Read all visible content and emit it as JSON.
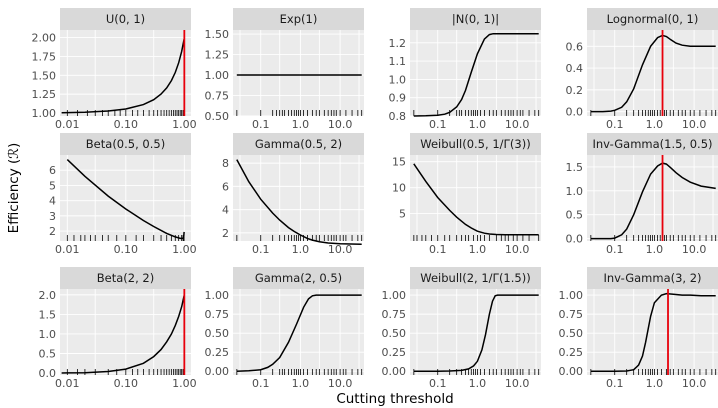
{
  "figure": {
    "xlabel": "Cutting threshold",
    "ylabel": "Efficiency (ℛ)"
  },
  "chart_data": [
    {
      "type": "line",
      "title": "U(0, 1)",
      "x_scale": "log",
      "xlim": [
        0.0075,
        1.3
      ],
      "ylim": [
        0.96,
        2.1
      ],
      "x_ticks": [
        {
          "v": 0.01,
          "label": "0.01"
        },
        {
          "v": 0.1,
          "label": "0.10"
        },
        {
          "v": 1,
          "label": "1.00"
        }
      ],
      "y_ticks": [
        {
          "v": 1.0,
          "label": "1.00"
        },
        {
          "v": 1.25,
          "label": "1.25"
        },
        {
          "v": 1.5,
          "label": "1.50"
        },
        {
          "v": 1.75,
          "label": "1.75"
        },
        {
          "v": 2.0,
          "label": "2.00"
        }
      ],
      "curve": {
        "x": [
          0.008,
          0.01,
          0.02,
          0.05,
          0.1,
          0.2,
          0.3,
          0.4,
          0.5,
          0.6,
          0.7,
          0.8,
          0.9,
          0.95,
          0.99
        ],
        "y": [
          1.004,
          1.005,
          1.01,
          1.026,
          1.053,
          1.111,
          1.176,
          1.25,
          1.333,
          1.429,
          1.538,
          1.667,
          1.818,
          1.905,
          1.98
        ]
      },
      "vline": 1.0,
      "rug": [
        0.01,
        0.015,
        0.022,
        0.03,
        0.04,
        0.05,
        0.065,
        0.08,
        0.1,
        0.13,
        0.16,
        0.2,
        0.25,
        0.3,
        0.35,
        0.4,
        0.45,
        0.5,
        0.55,
        0.6,
        0.65,
        0.7,
        0.75,
        0.8,
        0.85,
        0.9,
        0.95,
        0.99
      ]
    },
    {
      "type": "line",
      "title": "Exp(1)",
      "x_scale": "log",
      "xlim": [
        0.02,
        40
      ],
      "ylim": [
        0.5,
        1.55
      ],
      "x_ticks": [
        {
          "v": 0.1,
          "label": "0.1"
        },
        {
          "v": 1,
          "label": "1.0"
        },
        {
          "v": 10,
          "label": "10.0"
        }
      ],
      "y_ticks": [
        {
          "v": 0.5,
          "label": "0.50"
        },
        {
          "v": 0.75,
          "label": "0.75"
        },
        {
          "v": 1.0,
          "label": "1.00"
        },
        {
          "v": 1.25,
          "label": "1.25"
        },
        {
          "v": 1.5,
          "label": "1.50"
        }
      ],
      "curve": {
        "x": [
          0.025,
          35
        ],
        "y": [
          1.0,
          1.0
        ]
      },
      "rug": [
        0.025,
        0.1,
        0.2,
        0.25,
        0.3,
        0.35,
        0.4,
        0.5,
        0.6,
        0.7,
        0.8,
        0.9,
        1,
        1.2,
        1.5,
        2,
        2.5,
        3,
        4,
        5,
        6,
        7,
        8,
        10,
        14,
        20,
        28,
        35
      ]
    },
    {
      "type": "line",
      "title": "|N(0, 1)|",
      "x_scale": "log",
      "xlim": [
        0.02,
        40
      ],
      "ylim": [
        0.8,
        1.27
      ],
      "x_ticks": [
        {
          "v": 0.1,
          "label": "0.1"
        },
        {
          "v": 1,
          "label": "1.0"
        },
        {
          "v": 10,
          "label": "10.0"
        }
      ],
      "y_ticks": [
        {
          "v": 0.8,
          "label": "0.8"
        },
        {
          "v": 0.9,
          "label": "0.9"
        },
        {
          "v": 1.0,
          "label": "1.0"
        },
        {
          "v": 1.1,
          "label": "1.1"
        },
        {
          "v": 1.2,
          "label": "1.2"
        }
      ],
      "curve": {
        "x": [
          0.025,
          0.05,
          0.1,
          0.15,
          0.2,
          0.3,
          0.4,
          0.5,
          0.7,
          1.0,
          1.5,
          2.0,
          2.5,
          3.0,
          5,
          10,
          35
        ],
        "y": [
          0.8,
          0.801,
          0.804,
          0.81,
          0.82,
          0.85,
          0.89,
          0.94,
          1.04,
          1.14,
          1.22,
          1.245,
          1.25,
          1.25,
          1.25,
          1.25,
          1.25
        ]
      },
      "rug": [
        0.025,
        0.1,
        0.2,
        0.3,
        0.35,
        0.4,
        0.5,
        0.6,
        0.7,
        0.8,
        0.9,
        1,
        1.2,
        1.5,
        2,
        2.5,
        3,
        4,
        5,
        6,
        7,
        8,
        10,
        12,
        14,
        20,
        28,
        35
      ]
    },
    {
      "type": "line",
      "title": "Lognormal(0, 1)",
      "x_scale": "log",
      "xlim": [
        0.02,
        40
      ],
      "ylim": [
        -0.04,
        0.75
      ],
      "x_ticks": [
        {
          "v": 0.1,
          "label": "0.1"
        },
        {
          "v": 1,
          "label": "1.0"
        },
        {
          "v": 10,
          "label": "10.0"
        }
      ],
      "y_ticks": [
        {
          "v": 0.0,
          "label": "0.0"
        },
        {
          "v": 0.2,
          "label": "0.2"
        },
        {
          "v": 0.4,
          "label": "0.4"
        },
        {
          "v": 0.6,
          "label": "0.6"
        }
      ],
      "curve": {
        "x": [
          0.025,
          0.05,
          0.08,
          0.1,
          0.15,
          0.2,
          0.3,
          0.5,
          0.8,
          1.2,
          1.6,
          2.0,
          2.6,
          3.5,
          5,
          8,
          15,
          35
        ],
        "y": [
          0.0,
          0.0,
          0.005,
          0.012,
          0.04,
          0.09,
          0.21,
          0.43,
          0.6,
          0.68,
          0.7,
          0.69,
          0.66,
          0.63,
          0.61,
          0.6,
          0.6,
          0.6
        ]
      },
      "vline": 1.6,
      "rug": [
        0.025,
        0.1,
        0.2,
        0.3,
        0.4,
        0.5,
        0.6,
        0.7,
        0.8,
        0.9,
        1,
        1.2,
        1.4,
        1.6,
        1.8,
        2,
        2.5,
        3,
        4,
        5,
        6,
        8,
        10,
        14,
        20,
        28,
        35
      ]
    },
    {
      "type": "line",
      "title": "Beta(0.5, 0.5)",
      "x_scale": "log",
      "xlim": [
        0.0075,
        1.3
      ],
      "ylim": [
        1.35,
        7.0
      ],
      "x_ticks": [
        {
          "v": 0.01,
          "label": "0.01"
        },
        {
          "v": 0.1,
          "label": "0.10"
        },
        {
          "v": 1,
          "label": "1.00"
        }
      ],
      "y_ticks": [
        {
          "v": 2,
          "label": "2"
        },
        {
          "v": 3,
          "label": "3"
        },
        {
          "v": 4,
          "label": "4"
        },
        {
          "v": 5,
          "label": "5"
        },
        {
          "v": 6,
          "label": "6"
        }
      ],
      "curve": {
        "x": [
          0.01,
          0.02,
          0.05,
          0.1,
          0.2,
          0.3,
          0.5,
          0.7,
          0.85,
          0.92,
          0.96,
          0.98,
          0.99
        ],
        "y": [
          6.7,
          5.6,
          4.3,
          3.45,
          2.7,
          2.3,
          1.85,
          1.62,
          1.52,
          1.52,
          1.56,
          1.7,
          1.95
        ]
      },
      "rug": [
        0.01,
        0.013,
        0.017,
        0.02,
        0.025,
        0.03,
        0.04,
        0.05,
        0.07,
        0.1,
        0.15,
        0.2,
        0.3,
        0.4,
        0.5,
        0.6,
        0.7,
        0.8,
        0.9,
        0.95,
        0.98,
        0.99
      ]
    },
    {
      "type": "line",
      "title": "Gamma(0.5, 2)",
      "x_scale": "log",
      "xlim": [
        0.02,
        40
      ],
      "ylim": [
        1.3,
        8.7
      ],
      "x_ticks": [
        {
          "v": 0.1,
          "label": "0.1"
        },
        {
          "v": 1,
          "label": "1.0"
        },
        {
          "v": 10,
          "label": "10.0"
        }
      ],
      "y_ticks": [
        {
          "v": 2,
          "label": "2"
        },
        {
          "v": 4,
          "label": "4"
        },
        {
          "v": 6,
          "label": "6"
        },
        {
          "v": 8,
          "label": "8"
        }
      ],
      "curve": {
        "x": [
          0.025,
          0.05,
          0.1,
          0.2,
          0.3,
          0.5,
          0.7,
          1,
          1.5,
          2,
          3,
          5,
          10,
          35
        ],
        "y": [
          8.3,
          6.4,
          4.9,
          3.7,
          3.1,
          2.45,
          2.12,
          1.82,
          1.52,
          1.38,
          1.24,
          1.13,
          1.06,
          1.02
        ]
      },
      "rug": [
        0.025,
        0.1,
        0.2,
        0.3,
        0.4,
        0.5,
        0.6,
        0.7,
        0.8,
        0.9,
        1,
        1.2,
        1.5,
        2,
        2.5,
        3,
        4,
        5,
        6,
        7,
        8,
        10,
        12,
        14,
        20,
        28,
        35
      ]
    },
    {
      "type": "line",
      "title": "Weibull(0.5, 1/Γ(3))",
      "x_scale": "log",
      "xlim": [
        0.02,
        40
      ],
      "ylim": [
        -0.3,
        16.3
      ],
      "x_ticks": [
        {
          "v": 0.1,
          "label": "0.1"
        },
        {
          "v": 1,
          "label": "1.0"
        },
        {
          "v": 10,
          "label": "10.0"
        }
      ],
      "y_ticks": [
        {
          "v": 5,
          "label": "5"
        },
        {
          "v": 10,
          "label": "10"
        },
        {
          "v": 15,
          "label": "15"
        }
      ],
      "curve": {
        "x": [
          0.025,
          0.05,
          0.1,
          0.2,
          0.3,
          0.5,
          0.7,
          1,
          1.5,
          2,
          3,
          5,
          10,
          35
        ],
        "y": [
          14.6,
          11.2,
          8.1,
          5.6,
          4.3,
          2.9,
          2.2,
          1.6,
          1.2,
          1.05,
          0.95,
          0.92,
          0.9,
          0.9
        ]
      },
      "rug": [
        0.025,
        0.03,
        0.04,
        0.05,
        0.07,
        0.1,
        0.15,
        0.2,
        0.3,
        0.4,
        0.5,
        0.6,
        0.8,
        1,
        1.2,
        1.5,
        2,
        3,
        4,
        5,
        6,
        8,
        10,
        14,
        20,
        35
      ]
    },
    {
      "type": "line",
      "title": "Inv-Gamma(1.5, 0.5)",
      "x_scale": "log",
      "xlim": [
        0.02,
        40
      ],
      "ylim": [
        -0.05,
        1.75
      ],
      "x_ticks": [
        {
          "v": 0.1,
          "label": "0.1"
        },
        {
          "v": 1,
          "label": "1.0"
        },
        {
          "v": 10,
          "label": "10.0"
        }
      ],
      "y_ticks": [
        {
          "v": 0.0,
          "label": "0.0"
        },
        {
          "v": 0.5,
          "label": "0.5"
        },
        {
          "v": 1.0,
          "label": "1.0"
        },
        {
          "v": 1.5,
          "label": "1.5"
        }
      ],
      "curve": {
        "x": [
          0.025,
          0.05,
          0.08,
          0.1,
          0.15,
          0.2,
          0.3,
          0.5,
          0.8,
          1.2,
          1.6,
          2.0,
          2.6,
          3.5,
          5,
          8,
          15,
          35
        ],
        "y": [
          0.0,
          0.0,
          0.0,
          0.01,
          0.08,
          0.2,
          0.5,
          0.98,
          1.35,
          1.52,
          1.58,
          1.56,
          1.48,
          1.38,
          1.28,
          1.18,
          1.1,
          1.05
        ]
      },
      "vline": 1.6,
      "rug": [
        0.025,
        0.1,
        0.2,
        0.3,
        0.4,
        0.5,
        0.6,
        0.7,
        0.8,
        0.9,
        1,
        1.2,
        1.4,
        1.6,
        1.8,
        2,
        2.5,
        3,
        4,
        5,
        6,
        8,
        10,
        14,
        20,
        28,
        35
      ]
    },
    {
      "type": "line",
      "title": "Beta(2, 2)",
      "x_scale": "log",
      "xlim": [
        0.0075,
        1.3
      ],
      "ylim": [
        -0.05,
        2.15
      ],
      "x_ticks": [
        {
          "v": 0.01,
          "label": "0.01"
        },
        {
          "v": 0.1,
          "label": "0.10"
        },
        {
          "v": 1,
          "label": "1.00"
        }
      ],
      "y_ticks": [
        {
          "v": 0.0,
          "label": "0.0"
        },
        {
          "v": 0.5,
          "label": "0.5"
        },
        {
          "v": 1.0,
          "label": "1.0"
        },
        {
          "v": 1.5,
          "label": "1.5"
        },
        {
          "v": 2.0,
          "label": "2.0"
        }
      ],
      "curve": {
        "x": [
          0.008,
          0.01,
          0.02,
          0.05,
          0.1,
          0.2,
          0.3,
          0.4,
          0.5,
          0.6,
          0.7,
          0.8,
          0.9,
          0.95,
          0.99
        ],
        "y": [
          0.002,
          0.003,
          0.01,
          0.04,
          0.1,
          0.25,
          0.42,
          0.6,
          0.8,
          1.0,
          1.22,
          1.45,
          1.7,
          1.85,
          1.98
        ]
      },
      "vline": 1.0,
      "rug": [
        0.01,
        0.015,
        0.02,
        0.03,
        0.05,
        0.07,
        0.1,
        0.13,
        0.16,
        0.2,
        0.25,
        0.3,
        0.35,
        0.4,
        0.45,
        0.5,
        0.55,
        0.6,
        0.65,
        0.7,
        0.75,
        0.8,
        0.85,
        0.9,
        0.95,
        0.99
      ]
    },
    {
      "type": "line",
      "title": "Gamma(2, 0.5)",
      "x_scale": "log",
      "xlim": [
        0.02,
        40
      ],
      "ylim": [
        -0.05,
        1.08
      ],
      "x_ticks": [
        {
          "v": 0.1,
          "label": "0.1"
        },
        {
          "v": 1,
          "label": "1.0"
        },
        {
          "v": 10,
          "label": "10.0"
        }
      ],
      "y_ticks": [
        {
          "v": 0.0,
          "label": "0.00"
        },
        {
          "v": 0.25,
          "label": "0.25"
        },
        {
          "v": 0.5,
          "label": "0.50"
        },
        {
          "v": 0.75,
          "label": "0.75"
        },
        {
          "v": 1.0,
          "label": "1.00"
        }
      ],
      "curve": {
        "x": [
          0.025,
          0.05,
          0.1,
          0.15,
          0.2,
          0.3,
          0.5,
          0.8,
          1.2,
          1.6,
          2.0,
          2.5,
          3.0,
          5,
          10,
          35
        ],
        "y": [
          0.0,
          0.005,
          0.02,
          0.05,
          0.09,
          0.18,
          0.38,
          0.62,
          0.84,
          0.95,
          0.99,
          1.0,
          1.0,
          1.0,
          1.0,
          1.0
        ]
      },
      "rug": [
        0.025,
        0.1,
        0.2,
        0.3,
        0.35,
        0.4,
        0.5,
        0.6,
        0.7,
        0.8,
        0.9,
        1,
        1.2,
        1.5,
        2,
        2.5,
        3,
        4,
        5,
        6,
        7,
        8,
        10,
        12,
        14,
        20,
        28,
        35
      ]
    },
    {
      "type": "line",
      "title": "Weibull(2, 1/Γ(1.5))",
      "x_scale": "log",
      "xlim": [
        0.02,
        40
      ],
      "ylim": [
        -0.05,
        1.08
      ],
      "x_ticks": [
        {
          "v": 0.1,
          "label": "0.1"
        },
        {
          "v": 1,
          "label": "1.0"
        },
        {
          "v": 10,
          "label": "10.0"
        }
      ],
      "y_ticks": [
        {
          "v": 0.0,
          "label": "0.00"
        },
        {
          "v": 0.25,
          "label": "0.25"
        },
        {
          "v": 0.5,
          "label": "0.50"
        },
        {
          "v": 0.75,
          "label": "0.75"
        },
        {
          "v": 1.0,
          "label": "1.00"
        }
      ],
      "curve": {
        "x": [
          0.025,
          0.1,
          0.2,
          0.4,
          0.6,
          0.8,
          1.0,
          1.3,
          1.6,
          2.0,
          2.4,
          2.8,
          3.2,
          4,
          6,
          10,
          35
        ],
        "y": [
          0.0,
          0.0,
          0.002,
          0.01,
          0.03,
          0.07,
          0.13,
          0.28,
          0.48,
          0.75,
          0.92,
          0.99,
          1.0,
          1.0,
          1.0,
          1.0,
          1.0
        ]
      },
      "rug": [
        0.025,
        0.1,
        0.2,
        0.3,
        0.4,
        0.5,
        0.6,
        0.7,
        0.8,
        0.9,
        1,
        1.2,
        1.5,
        2,
        2.5,
        3,
        4,
        5,
        6,
        7,
        8,
        10,
        12,
        14,
        20,
        28,
        35
      ]
    },
    {
      "type": "line",
      "title": "Inv-Gamma(3, 2)",
      "x_scale": "log",
      "xlim": [
        0.02,
        40
      ],
      "ylim": [
        -0.05,
        1.08
      ],
      "x_ticks": [
        {
          "v": 0.1,
          "label": "0.1"
        },
        {
          "v": 1,
          "label": "1.0"
        },
        {
          "v": 10,
          "label": "10.0"
        }
      ],
      "y_ticks": [
        {
          "v": 0.0,
          "label": "0.00"
        },
        {
          "v": 0.25,
          "label": "0.25"
        },
        {
          "v": 0.5,
          "label": "0.50"
        },
        {
          "v": 0.75,
          "label": "0.75"
        },
        {
          "v": 1.0,
          "label": "1.00"
        }
      ],
      "curve": {
        "x": [
          0.025,
          0.1,
          0.2,
          0.3,
          0.4,
          0.5,
          0.6,
          0.8,
          1.0,
          1.5,
          2.0,
          3.0,
          5,
          8,
          15,
          35
        ],
        "y": [
          0.0,
          0.0,
          0.002,
          0.02,
          0.08,
          0.2,
          0.38,
          0.72,
          0.9,
          1.0,
          1.02,
          1.01,
          1.0,
          1.0,
          0.99,
          0.99
        ]
      },
      "vline": 2.2,
      "rug": [
        0.025,
        0.1,
        0.2,
        0.3,
        0.4,
        0.5,
        0.6,
        0.7,
        0.8,
        0.9,
        1,
        1.2,
        1.5,
        2,
        2.5,
        3,
        4,
        5,
        6,
        8,
        10,
        14,
        20,
        28,
        35
      ]
    }
  ]
}
